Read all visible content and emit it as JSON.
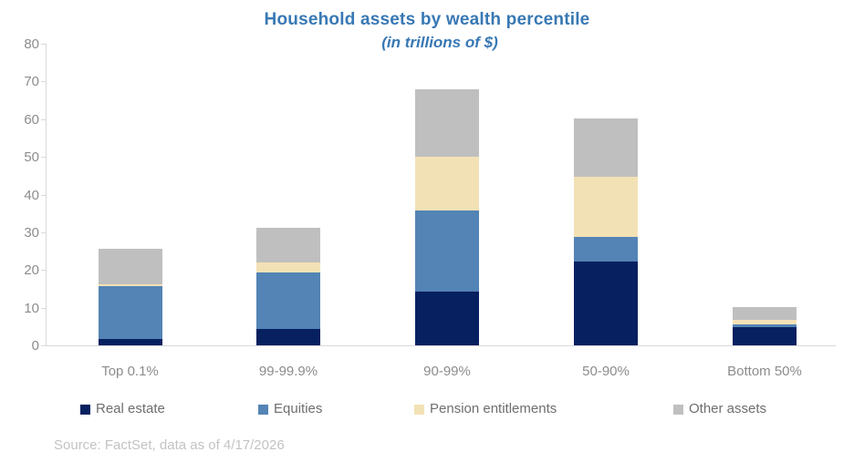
{
  "title": "Household assets by wealth percentile",
  "subtitle": "(in trillions of $)",
  "source_note": "Source: FactSet, data as of 4/17/2026",
  "colors": {
    "title_blue": "#3878B4",
    "axis_line": "#D9D9D9",
    "axis_label_gray": "#8C8C8C",
    "legend_text_gray": "#6E6E6E",
    "source_gray": "#C3C3C3"
  },
  "chart_data": {
    "type": "bar",
    "stacked": true,
    "title": "Household assets by wealth percentile",
    "subtitle": "(in trillions of $)",
    "categories": [
      "Top 0.1%",
      "99-99.9%",
      "90-99%",
      "50-90%",
      "Bottom 50%"
    ],
    "series": [
      {
        "name": "Real estate",
        "color": "#062060",
        "values": [
          1.8,
          4.3,
          14.3,
          22.2,
          4.9
        ]
      },
      {
        "name": "Equities",
        "color": "#5384B5",
        "values": [
          13.8,
          15.1,
          21.5,
          6.5,
          0.7
        ]
      },
      {
        "name": "Pension entitlements",
        "color": "#F3E1B6",
        "values": [
          0.6,
          2.6,
          14.2,
          16.1,
          1.1
        ]
      },
      {
        "name": "Other assets",
        "color": "#BFBFBF",
        "values": [
          9.5,
          9.1,
          18.0,
          15.3,
          3.5
        ]
      }
    ],
    "totals": [
      25.7,
      31.1,
      68.0,
      60.1,
      10.2
    ],
    "ylabel": "",
    "xlabel": "",
    "ylim": [
      0,
      80
    ],
    "ytick_step": 10,
    "yticks": [
      0,
      10,
      20,
      30,
      40,
      50,
      60,
      70,
      80
    ],
    "grid": false,
    "legend_position": "bottom"
  }
}
